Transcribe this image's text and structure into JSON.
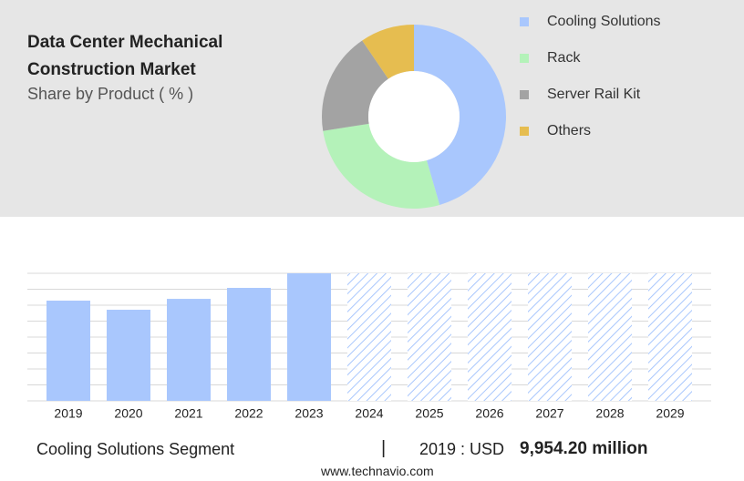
{
  "chart_data": [
    {
      "type": "pie",
      "title": "Data Center Mechanical Construction Market",
      "subtitle": "Share by Product ( % )",
      "donut": true,
      "categories": [
        "Cooling Solutions",
        "Rack",
        "Server Rail Kit",
        "Others"
      ],
      "values": [
        45.5,
        27,
        18,
        9.5
      ],
      "colors": [
        "#a9c7fd",
        "#b4f2b9",
        "#a3a3a3",
        "#e6bd50"
      ]
    },
    {
      "type": "bar",
      "categories": [
        "2019",
        "2020",
        "2021",
        "2022",
        "2023",
        "2024",
        "2025",
        "2026",
        "2027",
        "2028",
        "2029"
      ],
      "values": [
        9954.2,
        9050,
        10130,
        11220,
        12670,
        null,
        null,
        null,
        null,
        null,
        null
      ],
      "color": "#a9c7fd",
      "ylim": [
        0,
        12670
      ],
      "grid": true
    }
  ],
  "footer": {
    "segment": "Cooling Solutions Segment",
    "separator": "|",
    "year_label": "2019 : USD",
    "value_label": "9,954.20 million",
    "source": "www.technavio.com"
  }
}
